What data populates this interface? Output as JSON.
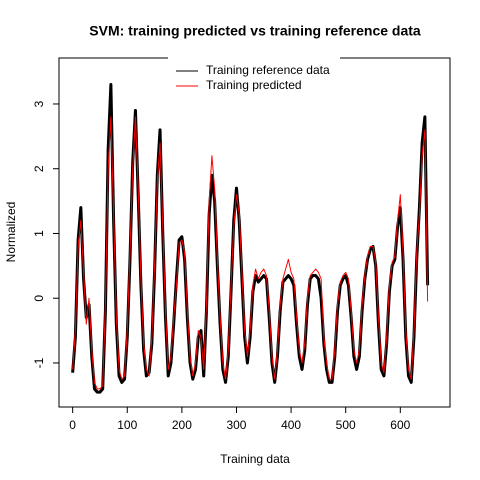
{
  "chart_data": {
    "type": "line",
    "title": "SVM: training predicted vs training reference data",
    "x_label": "Training data",
    "y_label": "Normalized",
    "x": [
      0,
      5,
      10,
      15,
      20,
      25,
      30,
      35,
      40,
      45,
      50,
      55,
      60,
      65,
      70,
      75,
      80,
      85,
      90,
      95,
      100,
      105,
      110,
      115,
      120,
      125,
      130,
      135,
      140,
      145,
      150,
      155,
      160,
      165,
      170,
      175,
      180,
      185,
      190,
      195,
      200,
      205,
      210,
      215,
      220,
      225,
      230,
      235,
      240,
      245,
      250,
      255,
      260,
      265,
      270,
      275,
      280,
      285,
      290,
      295,
      300,
      305,
      310,
      315,
      320,
      325,
      330,
      335,
      340,
      345,
      350,
      355,
      360,
      365,
      370,
      375,
      380,
      385,
      390,
      395,
      400,
      405,
      410,
      415,
      420,
      425,
      430,
      435,
      440,
      445,
      450,
      455,
      460,
      465,
      470,
      475,
      480,
      485,
      490,
      495,
      500,
      505,
      510,
      515,
      520,
      525,
      530,
      535,
      540,
      545,
      550,
      555,
      560,
      565,
      570,
      575,
      580,
      585,
      590,
      595,
      600,
      605,
      610,
      615,
      620,
      625,
      630,
      635,
      640,
      645,
      650
    ],
    "series": [
      {
        "name": "Training reference data",
        "color": "#000000",
        "width": 3,
        "values": [
          -1.15,
          -0.6,
          0.9,
          1.4,
          0.3,
          -0.3,
          -0.1,
          -0.9,
          -1.4,
          -1.45,
          -1.45,
          -1.4,
          -0.2,
          2.3,
          3.3,
          1.2,
          -0.4,
          -1.2,
          -1.3,
          -1.25,
          -0.6,
          0.6,
          2.1,
          2.9,
          1.6,
          0.2,
          -0.8,
          -1.2,
          -1.15,
          -0.7,
          0.4,
          1.9,
          2.6,
          1.0,
          -0.3,
          -1.2,
          -1.0,
          -0.4,
          0.3,
          0.9,
          0.95,
          0.6,
          -0.3,
          -1.0,
          -1.25,
          -1.1,
          -0.6,
          -0.5,
          -1.2,
          -0.2,
          1.3,
          1.9,
          1.5,
          0.5,
          -0.4,
          -1.1,
          -1.3,
          -0.9,
          0.1,
          1.2,
          1.7,
          1.2,
          0.3,
          -0.6,
          -1.0,
          -0.6,
          0.1,
          0.35,
          0.25,
          0.3,
          0.35,
          0.3,
          -0.3,
          -1.0,
          -1.3,
          -0.9,
          -0.2,
          0.25,
          0.3,
          0.35,
          0.3,
          0.2,
          -0.4,
          -0.9,
          -1.1,
          -0.8,
          -0.1,
          0.3,
          0.35,
          0.35,
          0.3,
          0.0,
          -0.7,
          -1.1,
          -1.3,
          -1.3,
          -0.9,
          -0.2,
          0.2,
          0.3,
          0.35,
          0.2,
          -0.3,
          -0.9,
          -1.1,
          -0.9,
          -0.2,
          0.3,
          0.6,
          0.75,
          0.8,
          0.5,
          -0.4,
          -1.1,
          -1.2,
          -0.7,
          0.1,
          0.5,
          0.6,
          1.1,
          1.4,
          0.6,
          -0.6,
          -1.2,
          -1.3,
          -0.6,
          0.6,
          1.4,
          2.4,
          2.8,
          0.2
        ]
      },
      {
        "name": "Training predicted",
        "color": "#ff0000",
        "width": 1,
        "values": [
          -1.1,
          -0.5,
          0.8,
          1.2,
          0.4,
          -0.4,
          0.0,
          -0.8,
          -1.3,
          -1.4,
          -1.4,
          -1.35,
          -0.1,
          2.0,
          2.8,
          1.3,
          -0.3,
          -1.1,
          -1.25,
          -1.2,
          -0.5,
          0.7,
          2.0,
          2.8,
          1.7,
          0.3,
          -0.7,
          -1.1,
          -1.2,
          -0.6,
          0.5,
          1.8,
          2.4,
          1.1,
          -0.2,
          -1.1,
          -0.9,
          -0.3,
          0.2,
          0.85,
          0.9,
          0.7,
          -0.2,
          -0.9,
          -1.2,
          -1.0,
          -0.5,
          -0.6,
          -1.1,
          -0.1,
          1.5,
          2.2,
          1.7,
          0.6,
          -0.3,
          -1.0,
          -1.25,
          -0.8,
          0.2,
          1.1,
          1.6,
          1.3,
          0.4,
          -0.5,
          -0.9,
          -0.5,
          0.2,
          0.45,
          0.3,
          0.4,
          0.45,
          0.35,
          -0.2,
          -0.9,
          -1.25,
          -0.8,
          -0.1,
          0.3,
          0.45,
          0.6,
          0.4,
          0.3,
          -0.3,
          -0.8,
          -1.0,
          -0.7,
          0.0,
          0.35,
          0.4,
          0.45,
          0.4,
          0.3,
          -0.6,
          -1.0,
          -1.25,
          -1.25,
          -0.8,
          -0.1,
          0.25,
          0.35,
          0.4,
          0.3,
          -0.2,
          -0.8,
          -1.0,
          -0.8,
          -0.1,
          0.35,
          0.65,
          0.8,
          0.8,
          0.55,
          -0.3,
          -1.0,
          -1.15,
          -0.6,
          0.2,
          0.55,
          0.65,
          1.2,
          1.6,
          0.7,
          -0.5,
          -1.1,
          -1.25,
          -0.5,
          0.7,
          1.3,
          2.2,
          2.6,
          -0.05
        ]
      }
    ],
    "xlim": [
      -25,
      691
    ],
    "ylim": [
      -1.68,
      3.71
    ],
    "xticks": [
      0,
      100,
      200,
      300,
      400,
      500,
      600
    ],
    "yticks": [
      -1,
      0,
      1,
      2,
      3
    ],
    "legend": "top"
  }
}
